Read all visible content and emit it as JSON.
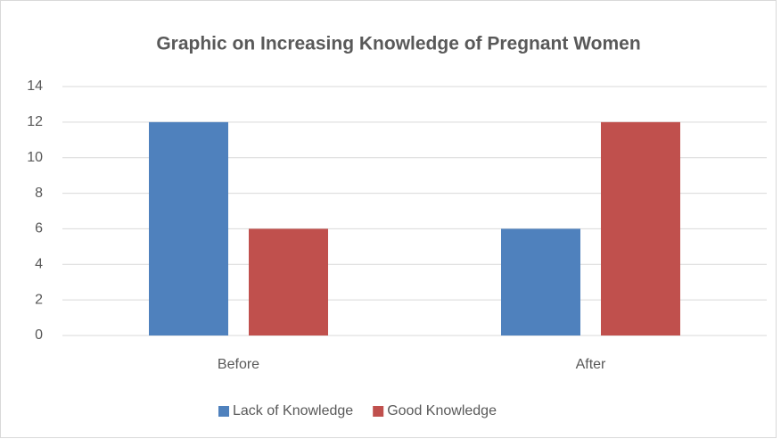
{
  "chart_data": {
    "type": "bar",
    "title": "Graphic on Increasing Knowledge of Pregnant Women",
    "categories": [
      "Before",
      "After"
    ],
    "series": [
      {
        "name": "Lack of Knowledge",
        "color": "#4f81bd",
        "values": [
          12,
          6
        ]
      },
      {
        "name": "Good Knowledge",
        "color": "#c0504d",
        "values": [
          6,
          12
        ]
      }
    ],
    "ylim": [
      0,
      14
    ],
    "yticks": [
      0,
      2,
      4,
      6,
      8,
      10,
      12,
      14
    ],
    "grid": true,
    "legend": "bottom"
  }
}
